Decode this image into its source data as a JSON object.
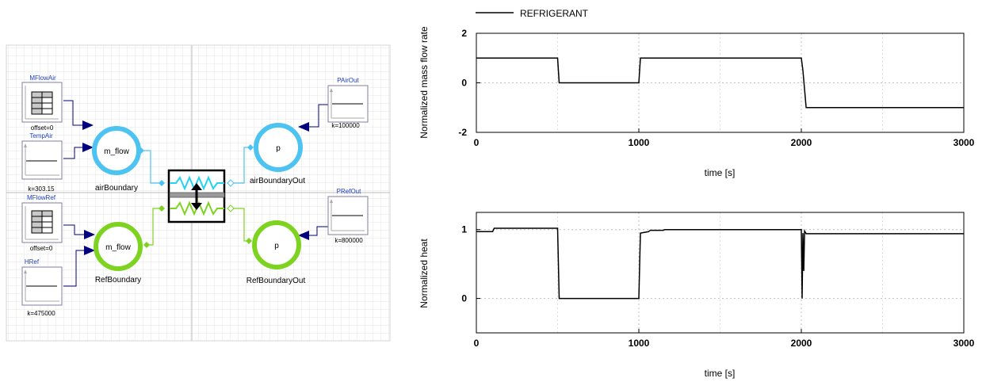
{
  "diagram": {
    "blocks": {
      "mflow_air": {
        "name": "MFlowAir",
        "param": "offset=0"
      },
      "temp_air": {
        "name": "TempAir",
        "param": "k=303.15"
      },
      "mflow_ref": {
        "name": "MFlowRef",
        "param": "offset=0"
      },
      "h_ref": {
        "name": "HRef",
        "param": "k=475000"
      },
      "p_air_out": {
        "name": "PAirOut",
        "param": "k=100000"
      },
      "p_ref_out": {
        "name": "PRefOut",
        "param": "k=800000"
      }
    },
    "boundaries": {
      "air_boundary": {
        "name": "airBoundary",
        "symbol": "m_flow",
        "color": "#4cc3f1"
      },
      "ref_boundary": {
        "name": "RefBoundary",
        "symbol": "m_flow",
        "color": "#7ed321"
      },
      "air_boundary_out": {
        "name": "airBoundaryOut",
        "symbol": "p",
        "color": "#4cc3f1"
      },
      "ref_boundary_out": {
        "name": "RefBoundaryOut",
        "symbol": "p",
        "color": "#7ed321"
      }
    },
    "colors": {
      "air": "#4cc3f1",
      "refrigerant": "#7ed321",
      "signal": "#00007f",
      "label": "#1f3fbf"
    }
  },
  "chart_data": [
    {
      "type": "line",
      "legend": "REFRIGERANT",
      "legend_position": "top-left",
      "xlabel": "time [s]",
      "ylabel": "Normalized mass flow rate",
      "xlim": [
        0,
        3000
      ],
      "ylim": [
        -2,
        2
      ],
      "xticks": [
        0,
        1000,
        2000,
        3000
      ],
      "yticks": [
        -2,
        0,
        2
      ],
      "grid": true,
      "series": [
        {
          "name": "REFRIGERANT",
          "x": [
            0,
            500,
            510,
            1000,
            1010,
            2000,
            2010,
            2030,
            3000
          ],
          "y": [
            1,
            1,
            0,
            0,
            1,
            1,
            0.5,
            -1,
            -1
          ]
        }
      ]
    },
    {
      "type": "line",
      "xlabel": "time [s]",
      "ylabel": "Normalized heat",
      "xlim": [
        0,
        3000
      ],
      "ylim": [
        -0.5,
        1.25
      ],
      "xticks": [
        0,
        1000,
        2000,
        3000
      ],
      "yticks": [
        0,
        1
      ],
      "grid": true,
      "series": [
        {
          "name": "",
          "x": [
            0,
            100,
            110,
            500,
            510,
            1000,
            1010,
            1060,
            1070,
            1150,
            1160,
            2000,
            2005,
            2010,
            2015,
            2020,
            2030,
            3000
          ],
          "y": [
            0.97,
            0.97,
            1.02,
            1.02,
            0,
            0,
            0.95,
            0.97,
            0.99,
            0.99,
            1,
            1,
            0,
            0.95,
            0.4,
            0.98,
            0.94,
            0.94
          ]
        }
      ]
    }
  ]
}
